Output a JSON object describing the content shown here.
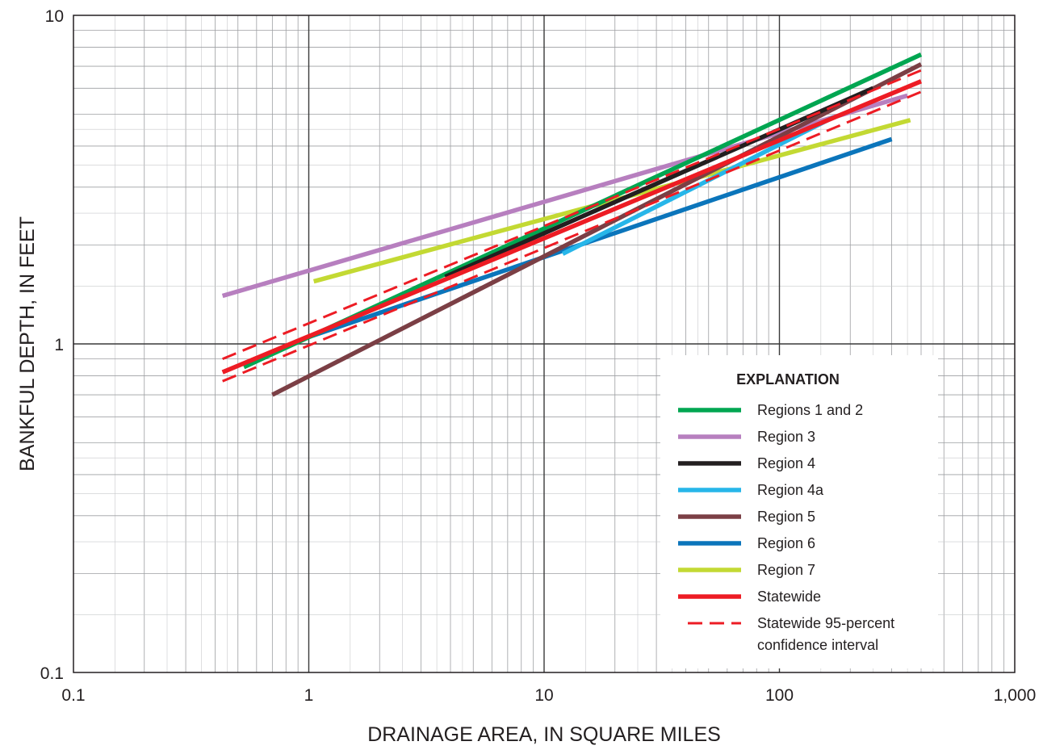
{
  "chart_data": {
    "type": "line",
    "x_scale": "log",
    "y_scale": "log",
    "xlabel": "DRAINAGE AREA, IN SQUARE MILES",
    "ylabel": "BANKFUL DEPTH, IN FEET",
    "xlim": [
      0.1,
      1000
    ],
    "ylim": [
      0.1,
      10
    ],
    "grid": true,
    "x_ticks": [
      {
        "value": 0.1,
        "label": "0.1"
      },
      {
        "value": 1,
        "label": "1"
      },
      {
        "value": 10,
        "label": "10"
      },
      {
        "value": 100,
        "label": "100"
      },
      {
        "value": 1000,
        "label": "1,000"
      }
    ],
    "y_ticks": [
      {
        "value": 0.1,
        "label": "0.1"
      },
      {
        "value": 1,
        "label": "1"
      },
      {
        "value": 10,
        "label": "10"
      }
    ],
    "legend": {
      "title": "EXPLANATION",
      "placement": "bottom-right"
    },
    "series": [
      {
        "name": "Regions 1 and 2",
        "color": "#00a651",
        "style": "solid",
        "x": [
          0.53,
          400
        ],
        "y": [
          0.85,
          7.6
        ]
      },
      {
        "name": "Region 3",
        "color": "#b77fbf",
        "style": "solid",
        "x": [
          0.43,
          350
        ],
        "y": [
          1.4,
          5.7
        ]
      },
      {
        "name": "Region 4",
        "color": "#231f20",
        "style": "solid",
        "x": [
          3.8,
          250
        ],
        "y": [
          1.6,
          6.0
        ]
      },
      {
        "name": "Region 4a",
        "color": "#27b6e9",
        "style": "solid",
        "x": [
          12,
          170
        ],
        "y": [
          1.88,
          4.9
        ]
      },
      {
        "name": "Region 5",
        "color": "#7b3f45",
        "style": "solid",
        "x": [
          0.7,
          400
        ],
        "y": [
          0.7,
          7.1
        ]
      },
      {
        "name": "Region 6",
        "color": "#0b75bb",
        "style": "solid",
        "x": [
          1.0,
          300
        ],
        "y": [
          1.05,
          4.2
        ]
      },
      {
        "name": "Region 7",
        "color": "#c3d933",
        "style": "solid",
        "x": [
          1.05,
          360
        ],
        "y": [
          1.55,
          4.8
        ]
      },
      {
        "name": "Statewide",
        "color": "#ed1c24",
        "style": "solid",
        "x": [
          0.43,
          400
        ],
        "y": [
          0.82,
          6.3
        ]
      },
      {
        "name": "Statewide 95-percent confidence interval",
        "color": "#ed1c24",
        "style": "dashed",
        "x": [
          0.43,
          400
        ],
        "y": [
          0.9,
          6.8
        ],
        "lower": {
          "x": [
            0.43,
            400
          ],
          "y": [
            0.77,
            5.85
          ]
        }
      }
    ]
  }
}
